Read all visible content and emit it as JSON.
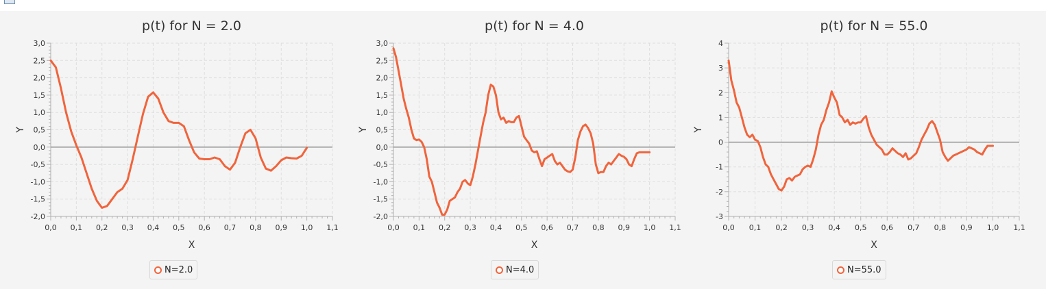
{
  "colors": {
    "series": "#f0643c",
    "zero_line": "#888888",
    "grid": "#dedede"
  },
  "icons": {
    "app": "window-app-icon"
  },
  "chart_data": [
    {
      "type": "line",
      "title": "p(t) for N = 2.0",
      "xlabel": "X",
      "ylabel": "Y",
      "xlim": [
        0.0,
        1.1
      ],
      "ylim": [
        -2.0,
        3.0
      ],
      "xticks": [
        "0,0",
        "0,1",
        "0,2",
        "0,3",
        "0,4",
        "0,5",
        "0,6",
        "0,7",
        "0,8",
        "0,9",
        "1,0",
        "1,1"
      ],
      "yticks": [
        "-2,0",
        "-1,5",
        "-1,0",
        "-0,5",
        "0,0",
        "0,5",
        "1,0",
        "1,5",
        "2,0",
        "2,5",
        "3,0"
      ],
      "grid": true,
      "legend_position": "bottom",
      "series": [
        {
          "name": "N=2.0",
          "x": [
            0.0,
            0.02,
            0.04,
            0.06,
            0.08,
            0.1,
            0.12,
            0.14,
            0.16,
            0.18,
            0.2,
            0.22,
            0.24,
            0.26,
            0.28,
            0.3,
            0.32,
            0.34,
            0.36,
            0.38,
            0.4,
            0.42,
            0.44,
            0.46,
            0.48,
            0.5,
            0.52,
            0.54,
            0.56,
            0.58,
            0.6,
            0.62,
            0.64,
            0.66,
            0.68,
            0.7,
            0.72,
            0.74,
            0.76,
            0.78,
            0.8,
            0.82,
            0.84,
            0.86,
            0.88,
            0.9,
            0.92,
            0.94,
            0.96,
            0.98,
            1.0
          ],
          "y": [
            2.5,
            2.3,
            1.7,
            1.0,
            0.45,
            0.05,
            -0.3,
            -0.75,
            -1.2,
            -1.55,
            -1.75,
            -1.7,
            -1.5,
            -1.3,
            -1.2,
            -0.95,
            -0.35,
            0.3,
            0.95,
            1.45,
            1.58,
            1.4,
            1.0,
            0.75,
            0.7,
            0.7,
            0.6,
            0.2,
            -0.15,
            -0.33,
            -0.35,
            -0.35,
            -0.3,
            -0.35,
            -0.55,
            -0.65,
            -0.45,
            0.0,
            0.4,
            0.5,
            0.25,
            -0.3,
            -0.62,
            -0.68,
            -0.55,
            -0.38,
            -0.3,
            -0.32,
            -0.33,
            -0.25,
            -0.02
          ]
        }
      ]
    },
    {
      "type": "line",
      "title": "p(t) for N = 4.0",
      "xlabel": "X",
      "ylabel": "Y",
      "xlim": [
        0.0,
        1.1
      ],
      "ylim": [
        -2.0,
        3.0
      ],
      "xticks": [
        "0,0",
        "0,1",
        "0,2",
        "0,3",
        "0,4",
        "0,5",
        "0,6",
        "0,7",
        "0,8",
        "0,9",
        "1,0",
        "1,1"
      ],
      "yticks": [
        "-2,0",
        "-1,5",
        "-1,0",
        "-0,5",
        "0,0",
        "0,5",
        "1,0",
        "1,5",
        "2,0",
        "2,5",
        "3,0"
      ],
      "grid": true,
      "legend_position": "bottom",
      "series": [
        {
          "name": "N=4.0",
          "x": [
            0.0,
            0.01,
            0.02,
            0.03,
            0.04,
            0.05,
            0.06,
            0.07,
            0.08,
            0.09,
            0.1,
            0.11,
            0.12,
            0.13,
            0.14,
            0.15,
            0.16,
            0.17,
            0.18,
            0.19,
            0.2,
            0.21,
            0.22,
            0.23,
            0.24,
            0.25,
            0.26,
            0.27,
            0.28,
            0.29,
            0.3,
            0.31,
            0.32,
            0.33,
            0.34,
            0.35,
            0.36,
            0.37,
            0.38,
            0.39,
            0.4,
            0.41,
            0.42,
            0.43,
            0.44,
            0.45,
            0.46,
            0.47,
            0.48,
            0.49,
            0.5,
            0.51,
            0.52,
            0.53,
            0.54,
            0.55,
            0.56,
            0.57,
            0.58,
            0.59,
            0.6,
            0.61,
            0.62,
            0.63,
            0.64,
            0.65,
            0.66,
            0.67,
            0.68,
            0.69,
            0.7,
            0.71,
            0.72,
            0.73,
            0.74,
            0.75,
            0.76,
            0.77,
            0.78,
            0.79,
            0.8,
            0.81,
            0.82,
            0.83,
            0.84,
            0.85,
            0.86,
            0.87,
            0.88,
            0.89,
            0.9,
            0.91,
            0.92,
            0.93,
            0.94,
            0.95,
            0.96,
            0.97,
            0.98,
            0.99,
            1.0
          ],
          "y": [
            2.85,
            2.6,
            2.2,
            1.8,
            1.4,
            1.1,
            0.85,
            0.5,
            0.25,
            0.2,
            0.22,
            0.15,
            0.0,
            -0.35,
            -0.85,
            -1.0,
            -1.3,
            -1.6,
            -1.75,
            -1.95,
            -1.95,
            -1.8,
            -1.55,
            -1.5,
            -1.45,
            -1.3,
            -1.2,
            -1.0,
            -0.95,
            -1.05,
            -1.1,
            -0.85,
            -0.5,
            -0.1,
            0.3,
            0.7,
            1.0,
            1.5,
            1.8,
            1.75,
            1.5,
            1.0,
            0.8,
            0.85,
            0.7,
            0.75,
            0.72,
            0.72,
            0.85,
            0.9,
            0.6,
            0.3,
            0.2,
            0.1,
            -0.1,
            -0.15,
            -0.12,
            -0.35,
            -0.55,
            -0.35,
            -0.3,
            -0.25,
            -0.2,
            -0.4,
            -0.5,
            -0.45,
            -0.55,
            -0.65,
            -0.7,
            -0.72,
            -0.65,
            -0.3,
            0.2,
            0.45,
            0.6,
            0.65,
            0.55,
            0.4,
            0.1,
            -0.5,
            -0.75,
            -0.72,
            -0.72,
            -0.55,
            -0.45,
            -0.5,
            -0.4,
            -0.3,
            -0.2,
            -0.25,
            -0.28,
            -0.35,
            -0.5,
            -0.55,
            -0.35,
            -0.18,
            -0.15,
            -0.15,
            -0.15,
            -0.15,
            -0.15
          ]
        }
      ]
    },
    {
      "type": "line",
      "title": "p(t) for N = 55.0",
      "xlabel": "X",
      "ylabel": "Y",
      "xlim": [
        0.0,
        1.1
      ],
      "ylim": [
        -3,
        4
      ],
      "xticks": [
        "0,0",
        "0,1",
        "0,2",
        "0,3",
        "0,4",
        "0,5",
        "0,6",
        "0,7",
        "0,8",
        "0,9",
        "1,0",
        "1,1"
      ],
      "yticks": [
        "-3",
        "-2",
        "-1",
        "0",
        "1",
        "2",
        "3",
        "4"
      ],
      "grid": true,
      "legend_position": "bottom",
      "series": [
        {
          "name": "N=55.0",
          "x": [
            0.0,
            0.01,
            0.02,
            0.03,
            0.04,
            0.05,
            0.06,
            0.07,
            0.08,
            0.09,
            0.1,
            0.11,
            0.12,
            0.13,
            0.14,
            0.15,
            0.16,
            0.17,
            0.18,
            0.19,
            0.2,
            0.21,
            0.22,
            0.23,
            0.24,
            0.25,
            0.26,
            0.27,
            0.28,
            0.29,
            0.3,
            0.31,
            0.32,
            0.33,
            0.34,
            0.35,
            0.36,
            0.37,
            0.38,
            0.39,
            0.4,
            0.41,
            0.42,
            0.43,
            0.44,
            0.45,
            0.46,
            0.47,
            0.48,
            0.49,
            0.5,
            0.51,
            0.52,
            0.53,
            0.54,
            0.55,
            0.56,
            0.57,
            0.58,
            0.59,
            0.6,
            0.61,
            0.62,
            0.63,
            0.64,
            0.65,
            0.66,
            0.67,
            0.68,
            0.69,
            0.7,
            0.71,
            0.72,
            0.73,
            0.74,
            0.75,
            0.76,
            0.77,
            0.78,
            0.79,
            0.8,
            0.81,
            0.82,
            0.83,
            0.84,
            0.85,
            0.86,
            0.87,
            0.88,
            0.89,
            0.9,
            0.91,
            0.92,
            0.93,
            0.94,
            0.95,
            0.96,
            0.97,
            0.98,
            0.99,
            1.0
          ],
          "y": [
            3.3,
            2.5,
            2.1,
            1.6,
            1.4,
            1.0,
            0.6,
            0.3,
            0.2,
            0.3,
            0.1,
            0.05,
            -0.2,
            -0.6,
            -0.9,
            -1.0,
            -1.3,
            -1.5,
            -1.7,
            -1.9,
            -1.95,
            -1.8,
            -1.5,
            -1.45,
            -1.55,
            -1.4,
            -1.35,
            -1.3,
            -1.1,
            -1.0,
            -0.95,
            -1.0,
            -0.7,
            -0.3,
            0.3,
            0.7,
            0.9,
            1.3,
            1.6,
            2.05,
            1.8,
            1.6,
            1.1,
            1.0,
            0.8,
            0.9,
            0.7,
            0.8,
            0.75,
            0.8,
            0.8,
            0.95,
            1.05,
            0.6,
            0.3,
            0.1,
            -0.1,
            -0.2,
            -0.3,
            -0.5,
            -0.5,
            -0.4,
            -0.25,
            -0.35,
            -0.45,
            -0.5,
            -0.6,
            -0.45,
            -0.7,
            -0.65,
            -0.55,
            -0.45,
            -0.2,
            0.1,
            0.3,
            0.5,
            0.75,
            0.85,
            0.7,
            0.4,
            0.1,
            -0.4,
            -0.6,
            -0.75,
            -0.65,
            -0.55,
            -0.5,
            -0.45,
            -0.4,
            -0.35,
            -0.3,
            -0.2,
            -0.25,
            -0.3,
            -0.4,
            -0.45,
            -0.5,
            -0.3,
            -0.15,
            -0.15,
            -0.15
          ]
        }
      ]
    }
  ]
}
